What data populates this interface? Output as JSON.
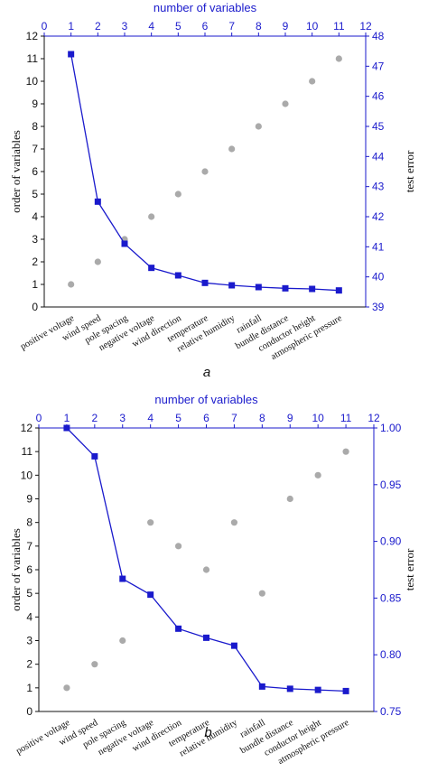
{
  "chart_data": [
    {
      "type": "scatter",
      "panel_label": "a",
      "top_axis_title": "number of variables",
      "left_axis_title": "order of variables",
      "right_axis_title": "test error",
      "top_axis": {
        "ticks": [
          0,
          1,
          2,
          3,
          4,
          5,
          6,
          7,
          8,
          9,
          10,
          11,
          12
        ],
        "lim": [
          0,
          12
        ]
      },
      "left_axis": {
        "ticks": [
          0,
          1,
          2,
          3,
          4,
          5,
          6,
          7,
          8,
          9,
          10,
          11,
          12
        ],
        "lim": [
          0,
          12
        ]
      },
      "right_axis": {
        "ticks": [
          39,
          40,
          41,
          42,
          43,
          44,
          45,
          46,
          47,
          48
        ],
        "lim": [
          39,
          48
        ]
      },
      "categories": [
        "positive voltage",
        "wind speed",
        "pole spacing",
        "negative voltage",
        "wind direction",
        "temperature",
        "relative humidity",
        "rainfall",
        "bundle distance",
        "conductor height",
        "atmospheric pressure"
      ],
      "series": [
        {
          "axis": "left",
          "style": "gray-dots",
          "color": "#aaaaaa",
          "x": [
            1,
            2,
            3,
            4,
            5,
            6,
            7,
            8,
            9,
            10,
            11
          ],
          "values": [
            1,
            2,
            3,
            4,
            5,
            6,
            7,
            8,
            9,
            10,
            11
          ]
        },
        {
          "axis": "right",
          "style": "blue-line-squares",
          "color": "#1a1acc",
          "x": [
            1,
            2,
            3,
            4,
            5,
            6,
            7,
            8,
            9,
            10,
            11
          ],
          "values": [
            47.4,
            42.5,
            41.1,
            40.3,
            40.05,
            39.8,
            39.72,
            39.66,
            39.62,
            39.6,
            39.55
          ]
        }
      ]
    },
    {
      "type": "scatter",
      "panel_label": "b",
      "top_axis_title": "number of variables",
      "left_axis_title": "order of variables",
      "right_axis_title": "test error",
      "top_axis": {
        "ticks": [
          0,
          1,
          2,
          3,
          4,
          5,
          6,
          7,
          8,
          9,
          10,
          11,
          12
        ],
        "lim": [
          0,
          12
        ]
      },
      "left_axis": {
        "ticks": [
          0,
          1,
          2,
          3,
          4,
          5,
          6,
          7,
          8,
          9,
          10,
          11,
          12
        ],
        "lim": [
          0,
          12
        ]
      },
      "right_axis": {
        "ticks": [
          "0.75",
          "0.80",
          "0.85",
          "0.90",
          "0.95",
          "1.00"
        ],
        "lim": [
          0.75,
          1.0
        ]
      },
      "categories": [
        "positive voltage",
        "wind speed",
        "pole spacing",
        "negative voltage",
        "wind direction",
        "temperature",
        "relative humidity",
        "rainfall",
        "bundle distance",
        "conductor height",
        "atmospheric pressure"
      ],
      "series": [
        {
          "axis": "left",
          "style": "gray-dots",
          "color": "#aaaaaa",
          "x": [
            1,
            2,
            3,
            4,
            5,
            6,
            7,
            8,
            9,
            10,
            11
          ],
          "values": [
            1,
            2,
            3,
            8,
            7,
            6,
            8,
            5,
            9,
            10,
            11
          ]
        },
        {
          "axis": "right",
          "style": "blue-line-squares",
          "color": "#1a1acc",
          "x": [
            1,
            2,
            3,
            4,
            5,
            6,
            7,
            8,
            9,
            10,
            11
          ],
          "values": [
            1.0,
            0.975,
            0.867,
            0.853,
            0.823,
            0.815,
            0.808,
            0.772,
            0.77,
            0.769,
            0.768
          ]
        }
      ]
    }
  ]
}
